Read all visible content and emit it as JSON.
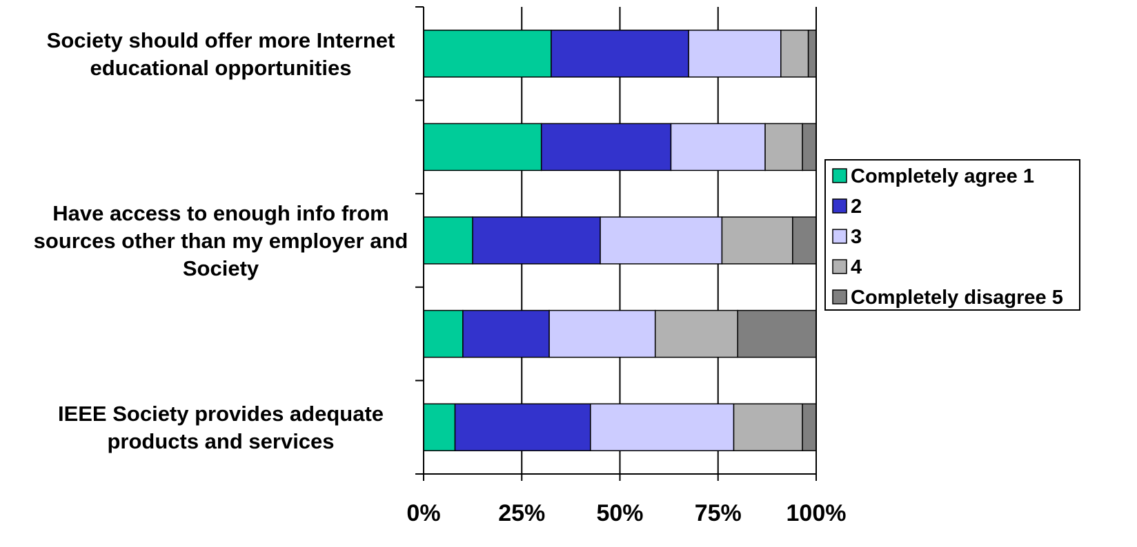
{
  "chart_data": {
    "type": "bar",
    "orientation": "horizontal",
    "stacked": "percent",
    "title": "",
    "xlabel": "",
    "ylabel": "",
    "xlim": [
      0,
      100
    ],
    "x_ticks": [
      "0%",
      "25%",
      "50%",
      "75%",
      "100%"
    ],
    "grid": true,
    "legend_position": "right",
    "categories": [
      "Society should offer more Internet educational opportunities",
      "",
      "Have access to enough info from sources other than my employer and Society",
      "",
      "IEEE Society provides adequate products and services"
    ],
    "category_label_lines": [
      [
        "Society should offer more Internet",
        "educational opportunities"
      ],
      [],
      [
        "Have access to enough info from",
        "sources other than my employer and",
        "Society"
      ],
      [],
      [
        "IEEE Society provides adequate",
        "products and services"
      ]
    ],
    "series": [
      {
        "name": "Completely agree 1",
        "color": "#00cc99",
        "values": [
          32.5,
          30,
          12.5,
          10,
          8
        ]
      },
      {
        "name": "2",
        "color": "#3333cc",
        "values": [
          35,
          33,
          32.5,
          22,
          34.5
        ]
      },
      {
        "name": "3",
        "color": "#ccccff",
        "values": [
          23.5,
          24,
          31,
          27,
          36.5
        ]
      },
      {
        "name": "4",
        "color": "#b2b2b2",
        "values": [
          7,
          9.5,
          18,
          21,
          17.5
        ]
      },
      {
        "name": "Completely disagree 5",
        "color": "#808080",
        "values": [
          2,
          3.5,
          6,
          20,
          3.5
        ]
      }
    ]
  }
}
